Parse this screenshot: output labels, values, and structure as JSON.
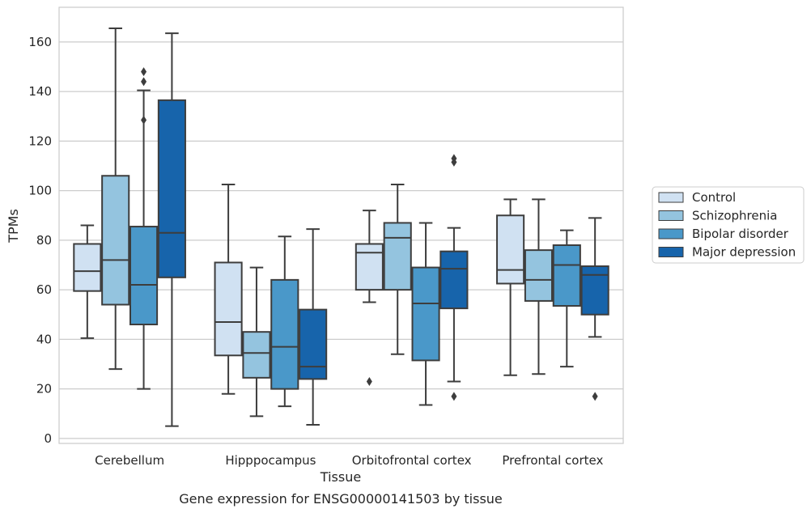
{
  "chart_data": {
    "type": "box",
    "caption": "Gene expression for ENSG00000141503 by tissue",
    "xlabel": "Tissue",
    "ylabel": "TPMs",
    "ylim": [
      -2,
      174
    ],
    "yticks": [
      0,
      20,
      40,
      60,
      80,
      100,
      120,
      140,
      160
    ],
    "grid": "horizontal",
    "legend_position": "right",
    "categories": [
      "Cerebellum",
      "Hipppocampus",
      "Orbitofrontal cortex",
      "Prefrontal cortex"
    ],
    "series": [
      {
        "name": "Control",
        "color": "#d0e1f2",
        "boxes": [
          {
            "whislo": 40.5,
            "q1": 59.5,
            "med": 67.5,
            "q3": 78.5,
            "whishi": 86,
            "fliers": []
          },
          {
            "whislo": 18,
            "q1": 33.5,
            "med": 47,
            "q3": 71,
            "whishi": 102.5,
            "fliers": []
          },
          {
            "whislo": 55,
            "q1": 60,
            "med": 75,
            "q3": 78.5,
            "whishi": 92,
            "fliers": [
              23
            ]
          },
          {
            "whislo": 25.5,
            "q1": 62.5,
            "med": 68,
            "q3": 90,
            "whishi": 96.5,
            "fliers": []
          }
        ]
      },
      {
        "name": "Schizophrenia",
        "color": "#94c4df",
        "boxes": [
          {
            "whislo": 28,
            "q1": 54,
            "med": 72,
            "q3": 106,
            "whishi": 165.5,
            "fliers": []
          },
          {
            "whislo": 9,
            "q1": 24.5,
            "med": 34.5,
            "q3": 43,
            "whishi": 69,
            "fliers": []
          },
          {
            "whislo": 34,
            "q1": 60,
            "med": 81,
            "q3": 87,
            "whishi": 102.5,
            "fliers": []
          },
          {
            "whislo": 26,
            "q1": 55.5,
            "med": 64,
            "q3": 76,
            "whishi": 96.5,
            "fliers": []
          }
        ]
      },
      {
        "name": "Bipolar disorder",
        "color": "#4a98c9",
        "boxes": [
          {
            "whislo": 20,
            "q1": 46,
            "med": 62,
            "q3": 85.5,
            "whishi": 140.5,
            "fliers": [
              128.5,
              144,
              148
            ]
          },
          {
            "whislo": 13,
            "q1": 20,
            "med": 37,
            "q3": 64,
            "whishi": 81.5,
            "fliers": []
          },
          {
            "whislo": 13.5,
            "q1": 31.5,
            "med": 54.5,
            "q3": 69,
            "whishi": 87,
            "fliers": []
          },
          {
            "whislo": 29,
            "q1": 53.5,
            "med": 70,
            "q3": 78,
            "whishi": 84,
            "fliers": []
          }
        ]
      },
      {
        "name": "Major depression",
        "color": "#1764ab",
        "boxes": [
          {
            "whislo": 5,
            "q1": 65,
            "med": 83,
            "q3": 136.5,
            "whishi": 163.5,
            "fliers": []
          },
          {
            "whislo": 5.5,
            "q1": 24,
            "med": 29,
            "q3": 52,
            "whishi": 84.5,
            "fliers": []
          },
          {
            "whislo": 23,
            "q1": 52.5,
            "med": 68.5,
            "q3": 75.5,
            "whishi": 85,
            "fliers": [
              17,
              111.5,
              113
            ]
          },
          {
            "whislo": 41,
            "q1": 50,
            "med": 66,
            "q3": 69.5,
            "whishi": 89,
            "fliers": [
              17
            ]
          }
        ]
      }
    ]
  }
}
